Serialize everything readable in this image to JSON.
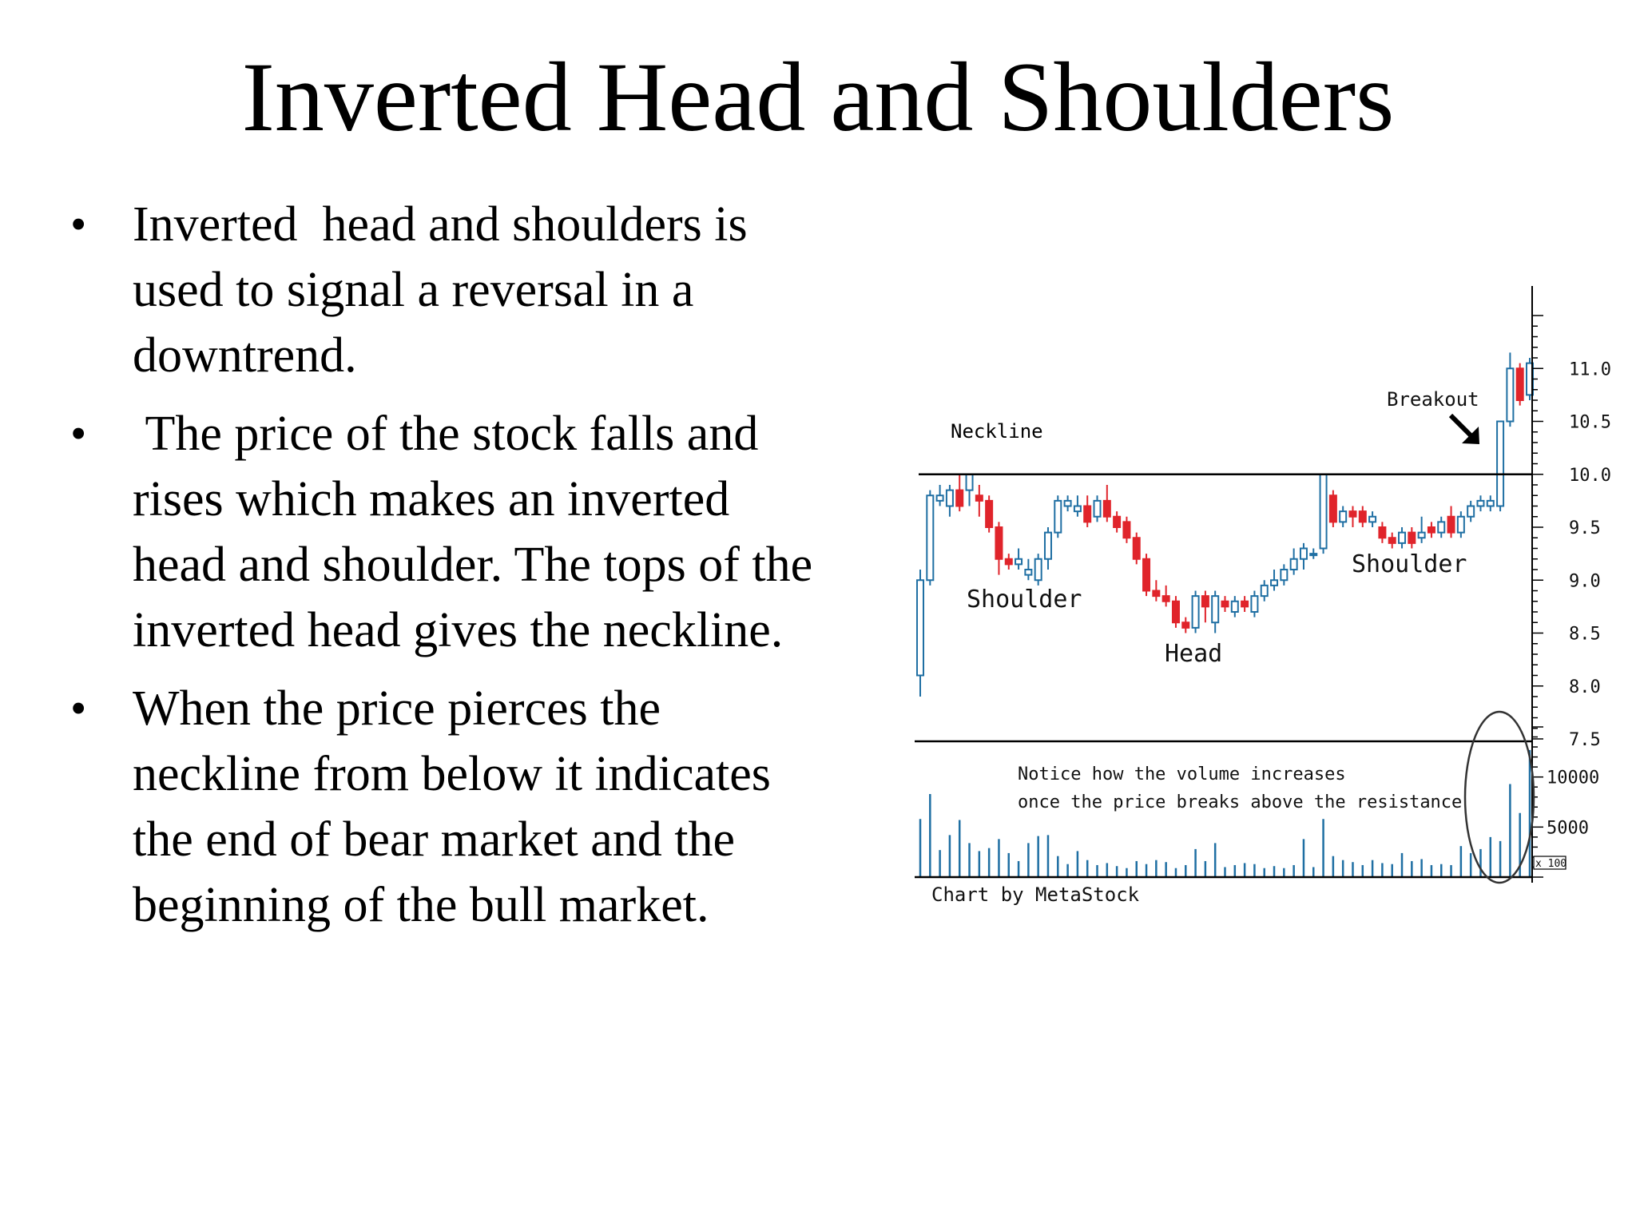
{
  "slide": {
    "title": "Inverted Head and Shoulders",
    "bullets": [
      "Inverted  head and shoulders is used to signal a reversal in a downtrend.",
      " The price of the stock falls and rises which makes an inverted head and shoulder. The tops of the inverted head gives the neckline.",
      "When the price pierces the neckline from below it indicates the end of bear market and the beginning of the bull market."
    ],
    "bullet_glyph": "•"
  },
  "chart_data": {
    "type": "candlestick",
    "price_axis": {
      "ylim": [
        7.5,
        11.5
      ],
      "ticks": [
        "11.0",
        "10.5",
        "10.0",
        "9.5",
        "9.0",
        "8.5",
        "8.0",
        "7.5"
      ]
    },
    "volume_axis": {
      "ylim": [
        0,
        15000
      ],
      "ticks": [
        "10000",
        "5000"
      ],
      "unit_label": "x 100"
    },
    "neckline": {
      "value": 10.0,
      "label": "Neckline"
    },
    "annotations": {
      "left_shoulder": "Shoulder",
      "head": "Head",
      "right_shoulder": "Shoulder",
      "breakout": "Breakout",
      "volume_note_line1": "Notice how the volume increases",
      "volume_note_line2": "once the price breaks above the resistance"
    },
    "credit": "Chart by MetaStock",
    "colors": {
      "up": "#1f6fa3",
      "down": "#e0242b",
      "line": "#000000"
    },
    "candles": [
      {
        "o": 8.1,
        "c": 9.0,
        "h": 9.1,
        "l": 7.9,
        "v": 5800
      },
      {
        "o": 9.0,
        "c": 9.8,
        "h": 9.85,
        "l": 8.95,
        "v": 8300
      },
      {
        "o": 9.75,
        "c": 9.8,
        "h": 9.9,
        "l": 9.7,
        "v": 2700
      },
      {
        "o": 9.7,
        "c": 9.85,
        "h": 9.9,
        "l": 9.6,
        "v": 4200
      },
      {
        "o": 9.85,
        "c": 9.7,
        "h": 10.0,
        "l": 9.65,
        "v": 5700
      },
      {
        "o": 9.85,
        "c": 10.0,
        "h": 10.0,
        "l": 9.7,
        "v": 3400
      },
      {
        "o": 9.8,
        "c": 9.75,
        "h": 9.9,
        "l": 9.6,
        "v": 2600
      },
      {
        "o": 9.75,
        "c": 9.5,
        "h": 9.8,
        "l": 9.45,
        "v": 2900
      },
      {
        "o": 9.5,
        "c": 9.2,
        "h": 9.55,
        "l": 9.05,
        "v": 3800
      },
      {
        "o": 9.2,
        "c": 9.15,
        "h": 9.25,
        "l": 9.1,
        "v": 2400
      },
      {
        "o": 9.15,
        "c": 9.2,
        "h": 9.3,
        "l": 9.1,
        "v": 1600
      },
      {
        "o": 9.05,
        "c": 9.1,
        "h": 9.2,
        "l": 9.0,
        "v": 3400
      },
      {
        "o": 9.0,
        "c": 9.2,
        "h": 9.25,
        "l": 8.95,
        "v": 4100
      },
      {
        "o": 9.2,
        "c": 9.45,
        "h": 9.5,
        "l": 9.1,
        "v": 4200
      },
      {
        "o": 9.45,
        "c": 9.75,
        "h": 9.8,
        "l": 9.4,
        "v": 2100
      },
      {
        "o": 9.7,
        "c": 9.75,
        "h": 9.8,
        "l": 9.65,
        "v": 1300
      },
      {
        "o": 9.65,
        "c": 9.7,
        "h": 9.8,
        "l": 9.6,
        "v": 2600
      },
      {
        "o": 9.7,
        "c": 9.55,
        "h": 9.8,
        "l": 9.5,
        "v": 1700
      },
      {
        "o": 9.6,
        "c": 9.75,
        "h": 9.8,
        "l": 9.55,
        "v": 1200
      },
      {
        "o": 9.75,
        "c": 9.6,
        "h": 9.9,
        "l": 9.55,
        "v": 1400
      },
      {
        "o": 9.6,
        "c": 9.5,
        "h": 9.65,
        "l": 9.45,
        "v": 1100
      },
      {
        "o": 9.55,
        "c": 9.4,
        "h": 9.6,
        "l": 9.35,
        "v": 900
      },
      {
        "o": 9.4,
        "c": 9.2,
        "h": 9.45,
        "l": 9.15,
        "v": 1600
      },
      {
        "o": 9.2,
        "c": 8.9,
        "h": 9.25,
        "l": 8.85,
        "v": 1300
      },
      {
        "o": 8.9,
        "c": 8.85,
        "h": 9.0,
        "l": 8.8,
        "v": 1700
      },
      {
        "o": 8.85,
        "c": 8.8,
        "h": 8.95,
        "l": 8.75,
        "v": 1500
      },
      {
        "o": 8.8,
        "c": 8.6,
        "h": 8.85,
        "l": 8.55,
        "v": 900
      },
      {
        "o": 8.6,
        "c": 8.55,
        "h": 8.65,
        "l": 8.5,
        "v": 1200
      },
      {
        "o": 8.55,
        "c": 8.85,
        "h": 8.9,
        "l": 8.5,
        "v": 2800
      },
      {
        "o": 8.85,
        "c": 8.75,
        "h": 8.9,
        "l": 8.6,
        "v": 1600
      },
      {
        "o": 8.6,
        "c": 8.85,
        "h": 8.9,
        "l": 8.5,
        "v": 3400
      },
      {
        "o": 8.8,
        "c": 8.75,
        "h": 8.85,
        "l": 8.7,
        "v": 1000
      },
      {
        "o": 8.7,
        "c": 8.8,
        "h": 8.85,
        "l": 8.65,
        "v": 1200
      },
      {
        "o": 8.8,
        "c": 8.75,
        "h": 8.85,
        "l": 8.7,
        "v": 1400
      },
      {
        "o": 8.7,
        "c": 8.85,
        "h": 8.9,
        "l": 8.65,
        "v": 1300
      },
      {
        "o": 8.85,
        "c": 8.95,
        "h": 9.0,
        "l": 8.8,
        "v": 900
      },
      {
        "o": 8.95,
        "c": 9.0,
        "h": 9.1,
        "l": 8.9,
        "v": 1100
      },
      {
        "o": 9.0,
        "c": 9.1,
        "h": 9.15,
        "l": 8.95,
        "v": 900
      },
      {
        "o": 9.1,
        "c": 9.2,
        "h": 9.3,
        "l": 9.05,
        "v": 1200
      },
      {
        "o": 9.2,
        "c": 9.3,
        "h": 9.35,
        "l": 9.1,
        "v": 3800
      },
      {
        "o": 9.25,
        "c": 9.25,
        "h": 9.3,
        "l": 9.2,
        "v": 1000
      },
      {
        "o": 9.3,
        "c": 10.0,
        "h": 10.0,
        "l": 9.25,
        "v": 5800
      },
      {
        "o": 9.8,
        "c": 9.55,
        "h": 9.85,
        "l": 9.5,
        "v": 2100
      },
      {
        "o": 9.55,
        "c": 9.65,
        "h": 9.7,
        "l": 9.5,
        "v": 1700
      },
      {
        "o": 9.65,
        "c": 9.6,
        "h": 9.7,
        "l": 9.5,
        "v": 1500
      },
      {
        "o": 9.65,
        "c": 9.55,
        "h": 9.7,
        "l": 9.5,
        "v": 1200
      },
      {
        "o": 9.55,
        "c": 9.6,
        "h": 9.65,
        "l": 9.5,
        "v": 1700
      },
      {
        "o": 9.5,
        "c": 9.4,
        "h": 9.55,
        "l": 9.35,
        "v": 1400
      },
      {
        "o": 9.4,
        "c": 9.35,
        "h": 9.45,
        "l": 9.3,
        "v": 1300
      },
      {
        "o": 9.35,
        "c": 9.45,
        "h": 9.5,
        "l": 9.3,
        "v": 2400
      },
      {
        "o": 9.45,
        "c": 9.35,
        "h": 9.5,
        "l": 9.3,
        "v": 1600
      },
      {
        "o": 9.4,
        "c": 9.45,
        "h": 9.6,
        "l": 9.35,
        "v": 1800
      },
      {
        "o": 9.5,
        "c": 9.45,
        "h": 9.55,
        "l": 9.4,
        "v": 1200
      },
      {
        "o": 9.45,
        "c": 9.55,
        "h": 9.6,
        "l": 9.4,
        "v": 1300
      },
      {
        "o": 9.6,
        "c": 9.45,
        "h": 9.7,
        "l": 9.4,
        "v": 1200
      },
      {
        "o": 9.45,
        "c": 9.6,
        "h": 9.65,
        "l": 9.4,
        "v": 3100
      },
      {
        "o": 9.6,
        "c": 9.7,
        "h": 9.75,
        "l": 9.55,
        "v": 2400
      },
      {
        "o": 9.7,
        "c": 9.75,
        "h": 9.8,
        "l": 9.65,
        "v": 2800
      },
      {
        "o": 9.7,
        "c": 9.75,
        "h": 9.8,
        "l": 9.65,
        "v": 4000
      },
      {
        "o": 9.7,
        "c": 10.5,
        "h": 10.5,
        "l": 9.65,
        "v": 3600
      },
      {
        "o": 10.5,
        "c": 11.0,
        "h": 11.15,
        "l": 10.45,
        "v": 9300
      },
      {
        "o": 11.0,
        "c": 10.7,
        "h": 11.05,
        "l": 10.65,
        "v": 6400
      },
      {
        "o": 10.75,
        "c": 11.05,
        "h": 11.1,
        "l": 10.7,
        "v": 12700
      }
    ]
  }
}
